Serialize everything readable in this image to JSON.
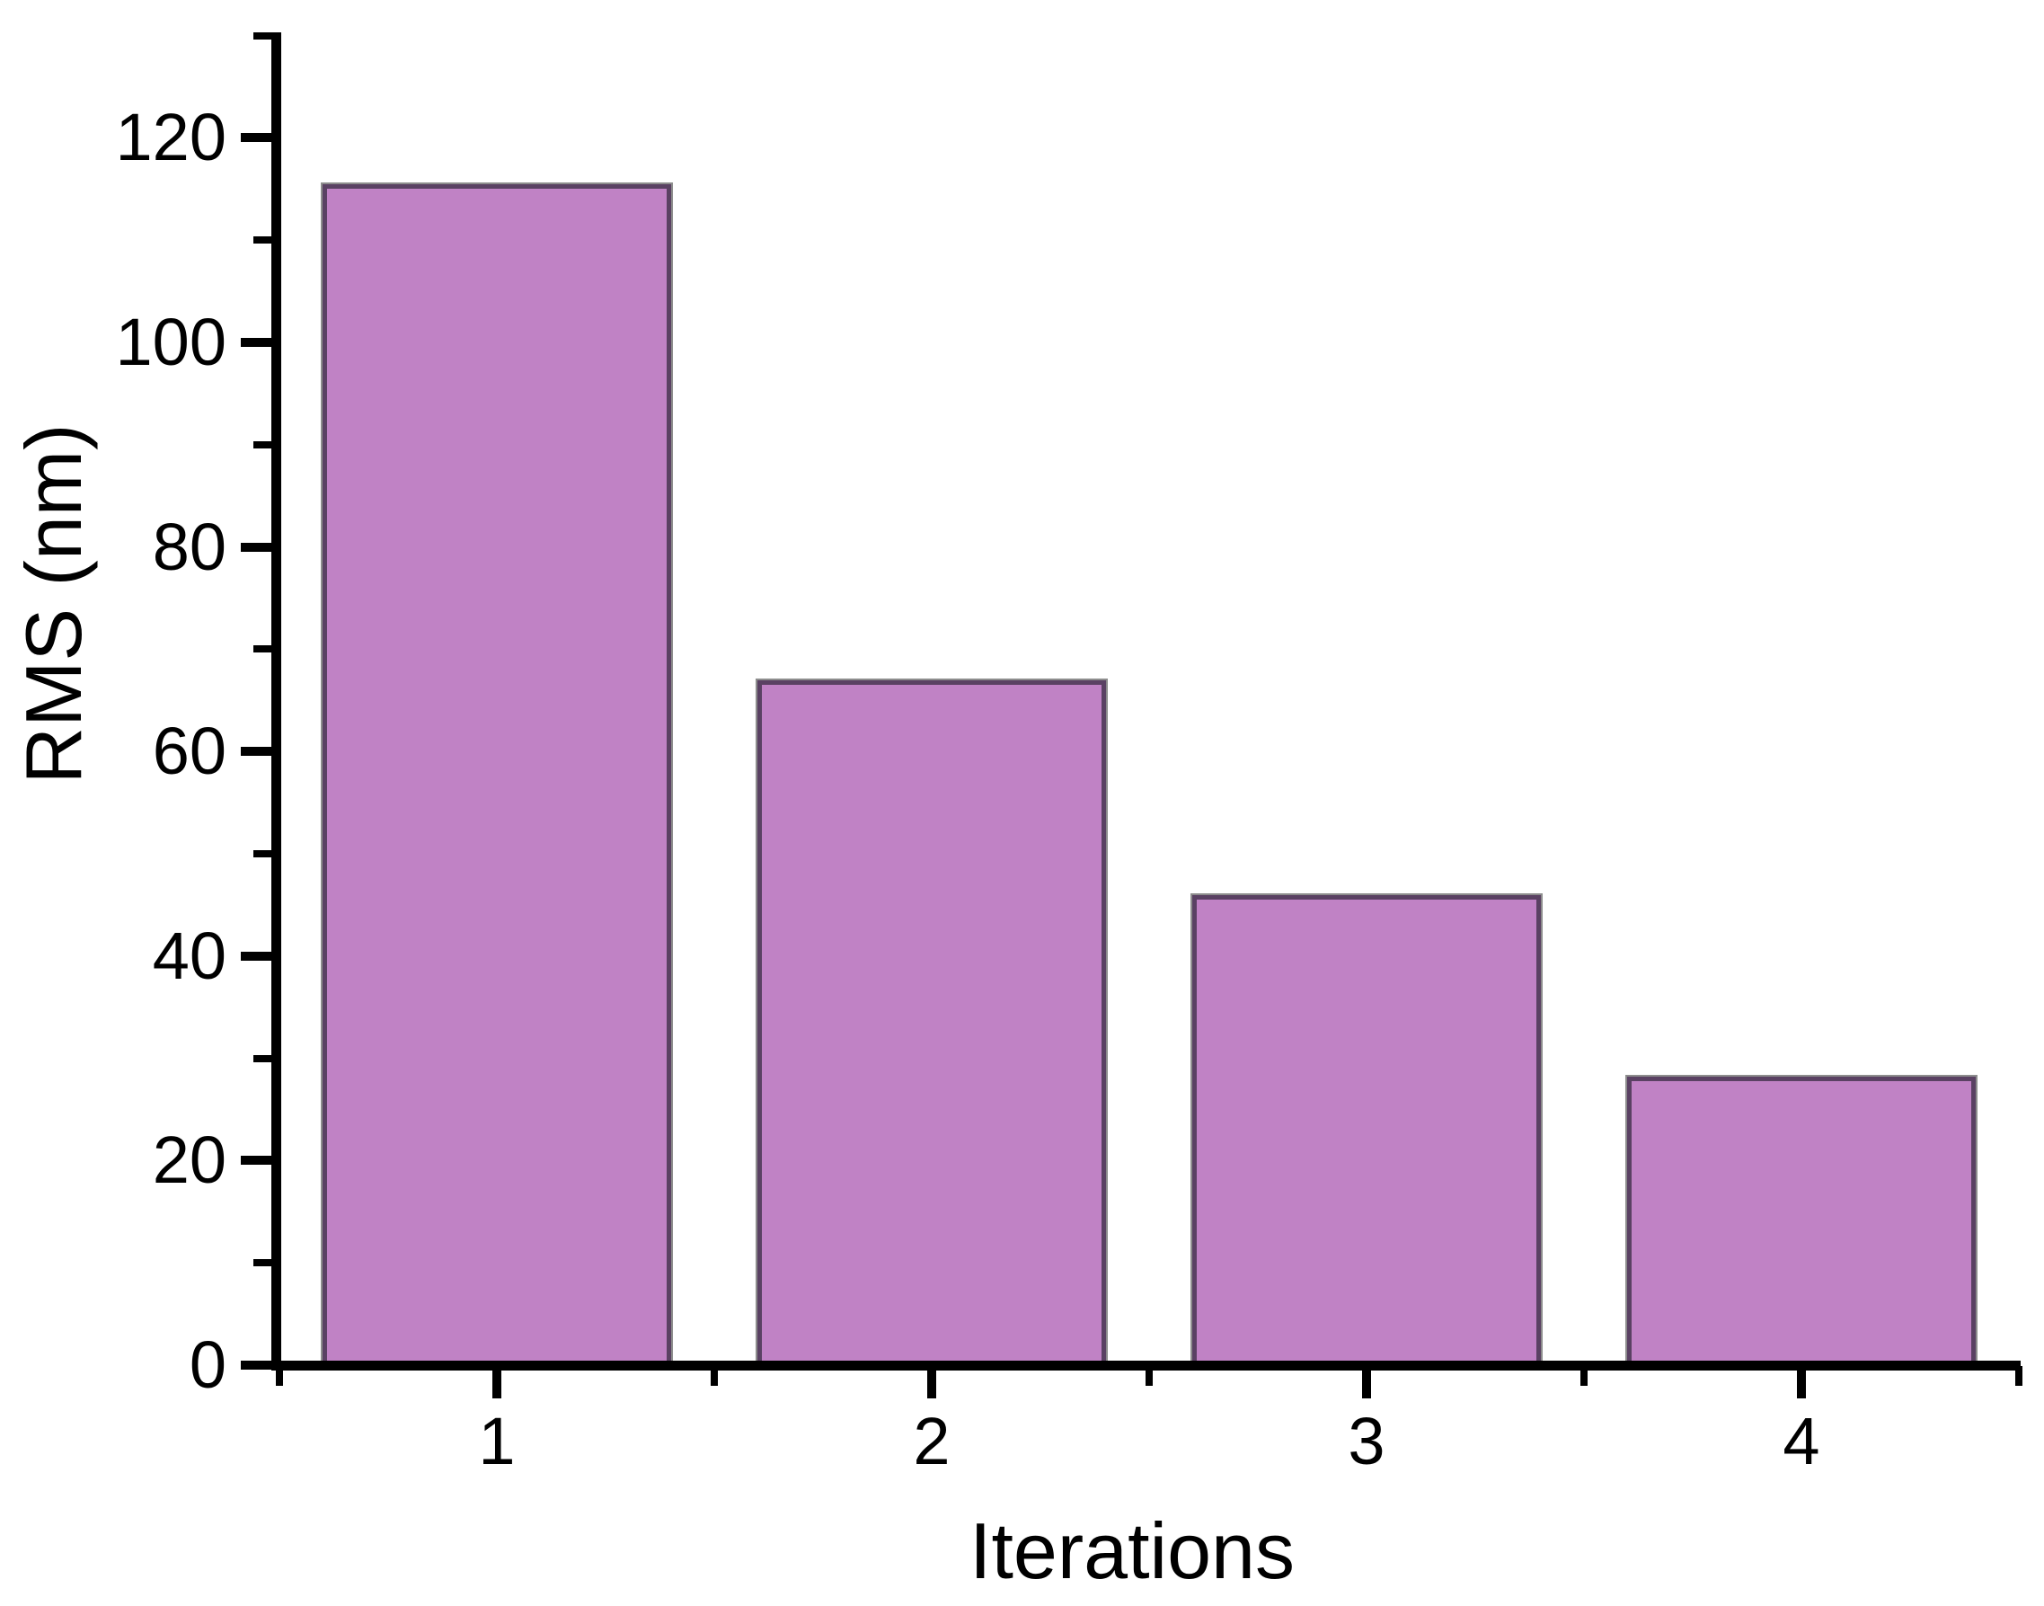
{
  "chart_data": {
    "type": "bar",
    "title": "",
    "xlabel": "Iterations",
    "ylabel": "RMS (nm)",
    "categories": [
      "1",
      "2",
      "3",
      "4"
    ],
    "values": [
      115.5,
      67,
      46,
      28.2
    ],
    "ylim": [
      0,
      130
    ],
    "y_major_ticks": [
      0,
      20,
      40,
      60,
      80,
      100,
      120
    ],
    "y_minor_tick_step": 10,
    "x_minor_ticks_between_categories": true,
    "grid": false,
    "legend": false,
    "bar_fill_color": "#c082c5",
    "bar_edge_color": "#5a4163",
    "bar_outer_edge_color": "#8d8d8d",
    "axis_color": "#000000",
    "text_color": "#000000",
    "background_color": "#ffffff"
  }
}
